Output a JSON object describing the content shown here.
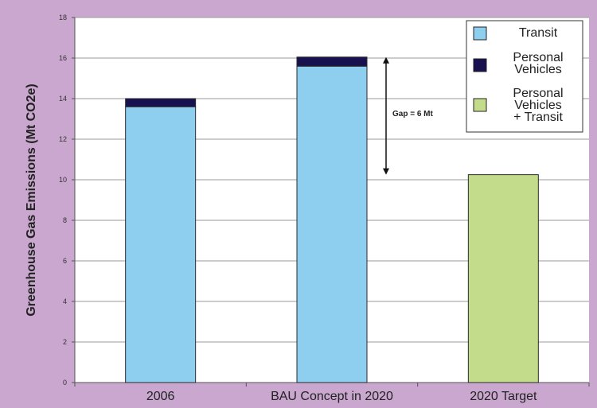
{
  "chart_data": {
    "type": "bar",
    "stacked": true,
    "categories": [
      "2006",
      "BAU Concept in 2020",
      "2020 Target"
    ],
    "series": [
      {
        "name": "Transit",
        "color": "#8ecfef",
        "values": [
          13.6,
          15.6,
          0
        ]
      },
      {
        "name": "Personal Vehicles",
        "color": "#17124f",
        "values": [
          0.4,
          0.45,
          0
        ]
      },
      {
        "name": "Personal Vehicles + Transit",
        "color": "#c3dc8c",
        "values": [
          0,
          0,
          10.25
        ]
      }
    ],
    "legend_labels": [
      [
        "Transit"
      ],
      [
        "Personal",
        "Vehicles"
      ],
      [
        "Personal",
        "Vehicles",
        "+ Transit"
      ]
    ],
    "ylabel": "Greenhouse Gas Emissions (Mt CO2e)",
    "ylim": [
      0,
      18
    ],
    "yticks": [
      0,
      2,
      4,
      6,
      8,
      10,
      12,
      14,
      16,
      18
    ],
    "grid": true,
    "legend_position": "top-right",
    "annotation": {
      "text": "Gap = 6 Mt",
      "from": 16.05,
      "to": 10.25
    },
    "plot_background": "#ffffff",
    "figure_background": "#c9a7cf"
  }
}
